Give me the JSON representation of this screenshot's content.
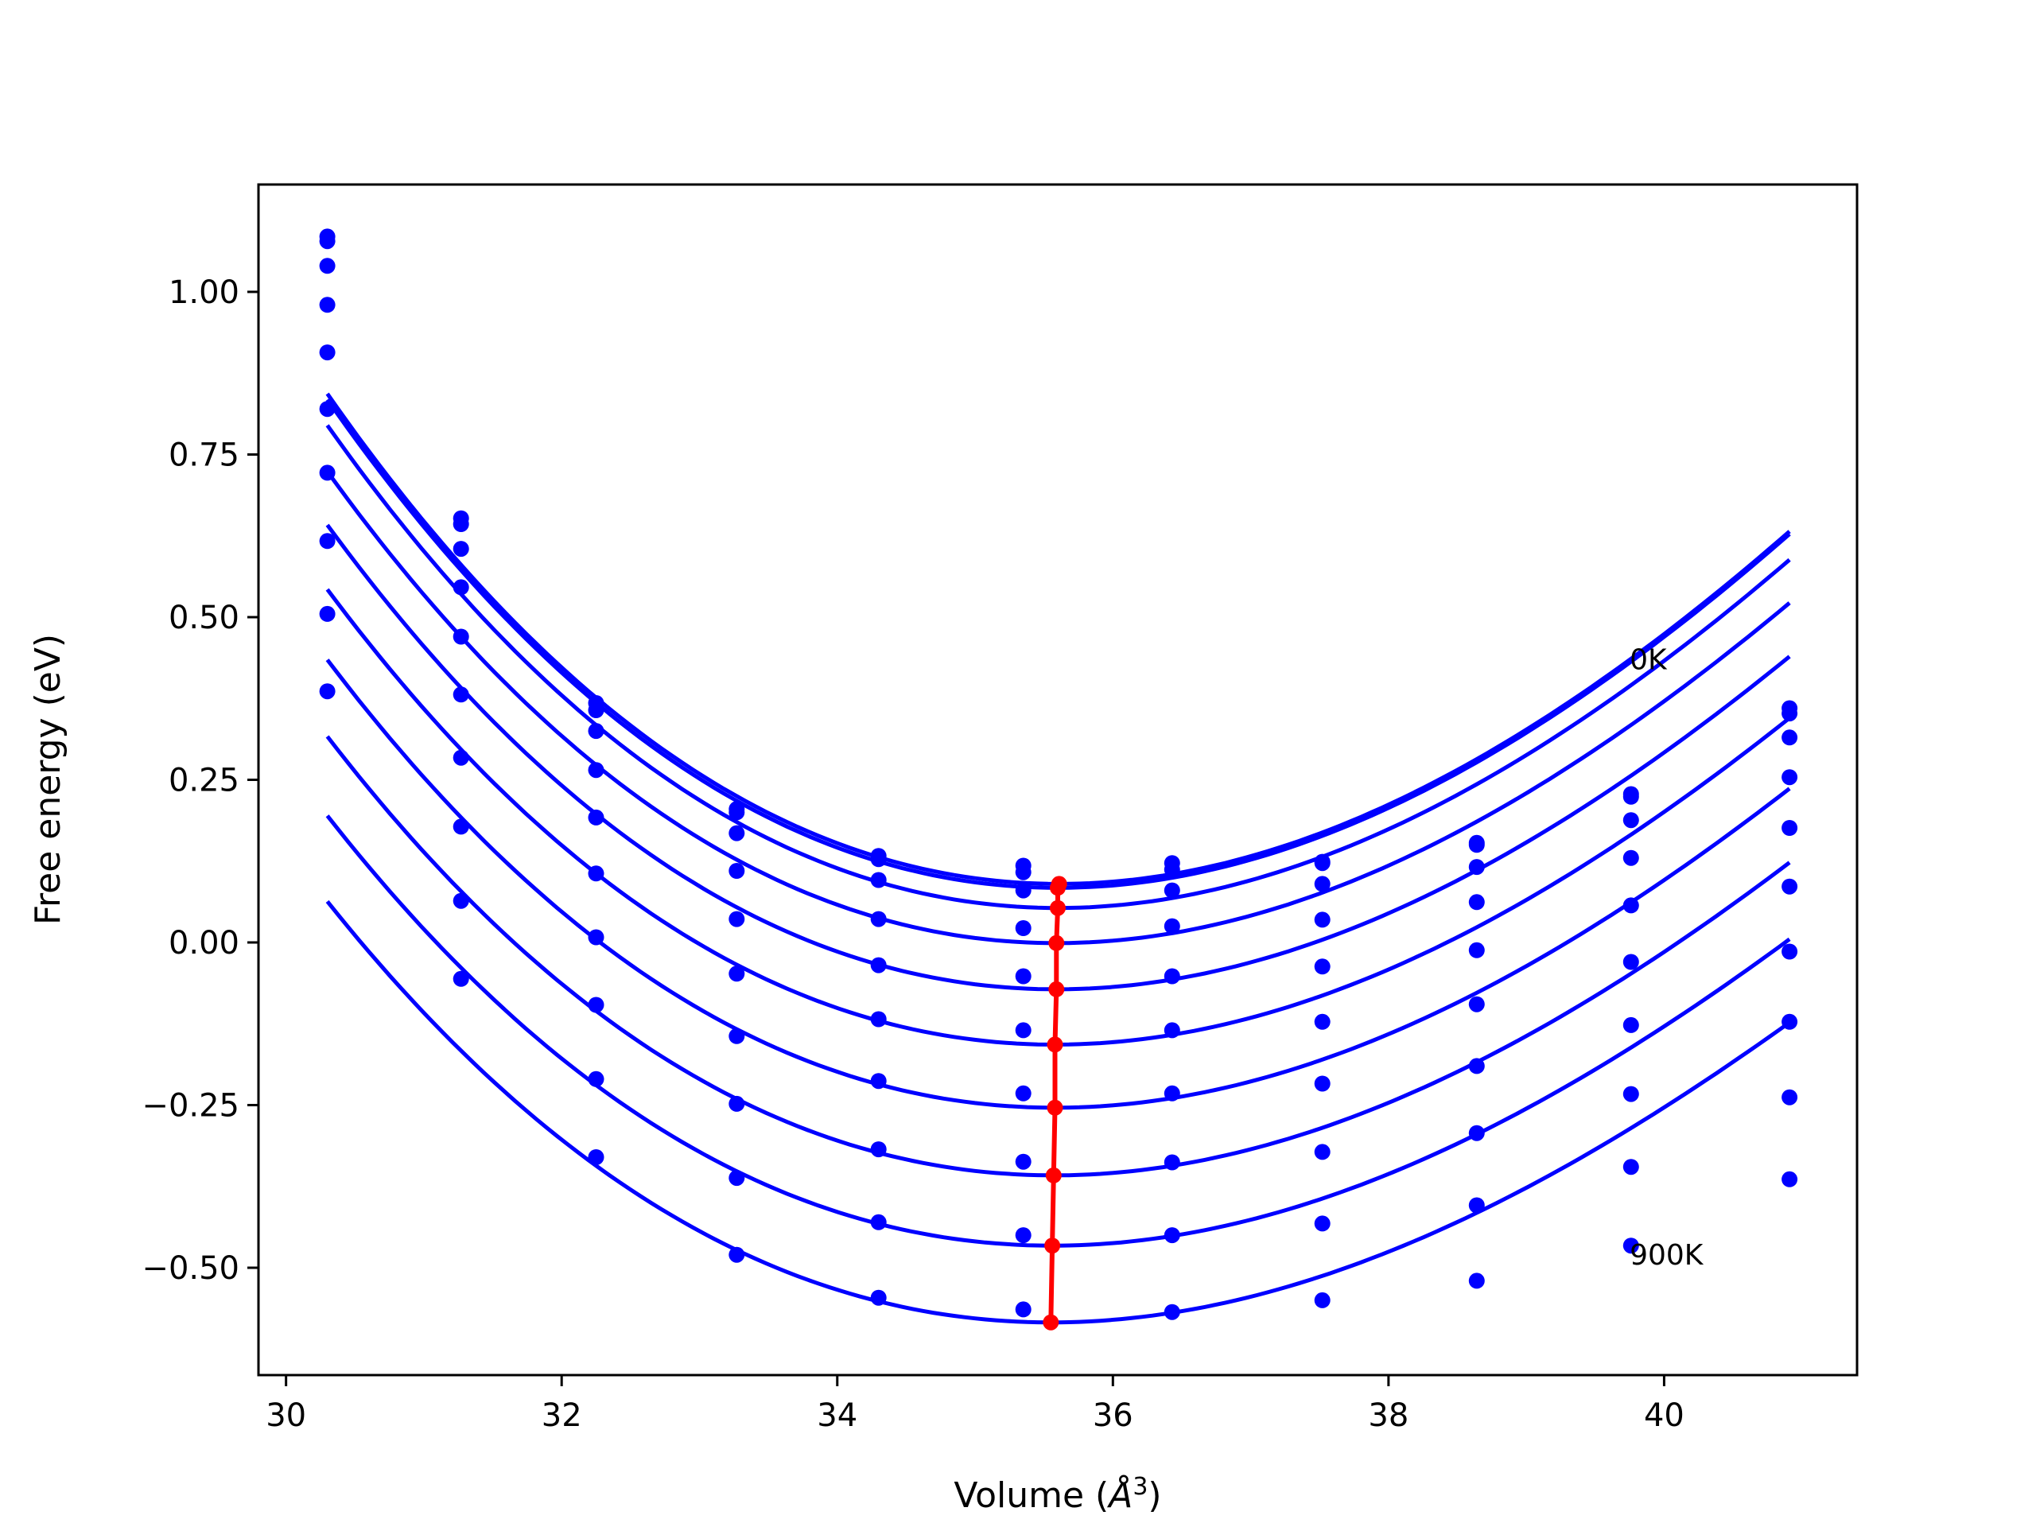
{
  "chart_data": {
    "type": "scatter",
    "xlabel_prefix": "Volume (",
    "xlabel_unit": "Å",
    "xlabel_exp": "3",
    "xlabel_suffix": ")",
    "ylabel": "Free energy (eV)",
    "xlim": [
      29.8,
      41.4
    ],
    "ylim": [
      -0.665,
      1.165
    ],
    "xticks": [
      30,
      32,
      34,
      36,
      38,
      40
    ],
    "xtick_labels": [
      "30",
      "32",
      "34",
      "36",
      "38",
      "40"
    ],
    "yticks": [
      -0.5,
      -0.25,
      0.0,
      0.25,
      0.5,
      0.75,
      1.0
    ],
    "ytick_labels": [
      "−0.50",
      "−0.25",
      "0.00",
      "0.25",
      "0.50",
      "0.75",
      "1.00"
    ],
    "annotations": [
      {
        "text": "0K",
        "x": 39.75,
        "y": 0.42
      },
      {
        "text": "900K",
        "x": 39.75,
        "y": -0.495
      }
    ],
    "colors": {
      "curves": "#0000ff",
      "points": "#0000ff",
      "minimum_line": "#ff0000"
    },
    "x": [
      30.3,
      31.27,
      32.25,
      33.27,
      34.3,
      35.35,
      36.43,
      37.52,
      38.64,
      39.76,
      40.91
    ],
    "series": [
      {
        "fit": {
          "e0": 0.09,
          "v0": 35.61,
          "b": 0.023,
          "c": -0.0007
        },
        "points": [
          1.085,
          0.652,
          0.368,
          0.205,
          0.133,
          0.118,
          0.122,
          0.124,
          0.153,
          0.228,
          0.36
        ]
      },
      {
        "fit": {
          "e0": 0.084,
          "v0": 35.6,
          "b": 0.023,
          "c": -0.0007
        },
        "points": [
          1.078,
          0.643,
          0.357,
          0.2,
          0.128,
          0.108,
          0.112,
          0.122,
          0.15,
          0.224,
          0.352
        ]
      },
      {
        "fit": {
          "e0": 0.053,
          "v0": 35.6,
          "b": 0.0227,
          "c": -0.0007
        },
        "points": [
          1.04,
          0.605,
          0.325,
          0.168,
          0.096,
          0.08,
          0.08,
          0.09,
          0.116,
          0.188,
          0.315
        ]
      },
      {
        "fit": {
          "e0": -0.001,
          "v0": 35.59,
          "b": 0.0222,
          "c": -0.0007
        },
        "points": [
          0.98,
          0.546,
          0.265,
          0.11,
          0.036,
          0.022,
          0.025,
          0.035,
          0.062,
          0.13,
          0.254
        ]
      },
      {
        "fit": {
          "e0": -0.072,
          "v0": 35.59,
          "b": 0.0218,
          "c": -0.0007
        },
        "points": [
          0.907,
          0.47,
          0.192,
          0.036,
          -0.035,
          -0.052,
          -0.052,
          -0.037,
          -0.012,
          0.057,
          0.176
        ]
      },
      {
        "fit": {
          "e0": -0.157,
          "v0": 35.58,
          "b": 0.0214,
          "c": -0.0007
        },
        "points": [
          0.82,
          0.381,
          0.106,
          -0.048,
          -0.118,
          -0.135,
          -0.135,
          -0.122,
          -0.095,
          -0.03,
          0.086
        ]
      },
      {
        "fit": {
          "e0": -0.254,
          "v0": 35.58,
          "b": 0.021,
          "c": -0.0007
        },
        "points": [
          0.722,
          0.284,
          0.008,
          -0.144,
          -0.213,
          -0.232,
          -0.232,
          -0.217,
          -0.19,
          -0.127,
          -0.014
        ]
      },
      {
        "fit": {
          "e0": -0.358,
          "v0": 35.57,
          "b": 0.0206,
          "c": -0.0007
        },
        "points": [
          0.617,
          0.178,
          -0.096,
          -0.248,
          -0.318,
          -0.337,
          -0.338,
          -0.322,
          -0.293,
          -0.233,
          -0.122
        ]
      },
      {
        "fit": {
          "e0": -0.466,
          "v0": 35.56,
          "b": 0.0202,
          "c": -0.0007
        },
        "points": [
          0.505,
          0.064,
          -0.21,
          -0.362,
          -0.43,
          -0.45,
          -0.45,
          -0.432,
          -0.404,
          -0.345,
          -0.238
        ]
      },
      {
        "fit": {
          "e0": -0.584,
          "v0": 35.55,
          "b": 0.0198,
          "c": -0.0007
        },
        "points": [
          0.386,
          -0.056,
          -0.33,
          -0.48,
          -0.546,
          -0.564,
          -0.568,
          -0.55,
          -0.52,
          -0.466,
          -0.364
        ]
      }
    ],
    "minimum_line": {
      "x": [
        35.61,
        35.6,
        35.6,
        35.59,
        35.59,
        35.58,
        35.58,
        35.57,
        35.56,
        35.55
      ],
      "y": [
        0.09,
        0.084,
        0.053,
        -0.001,
        -0.072,
        -0.157,
        -0.254,
        -0.358,
        -0.466,
        -0.584
      ]
    },
    "grid": false
  }
}
